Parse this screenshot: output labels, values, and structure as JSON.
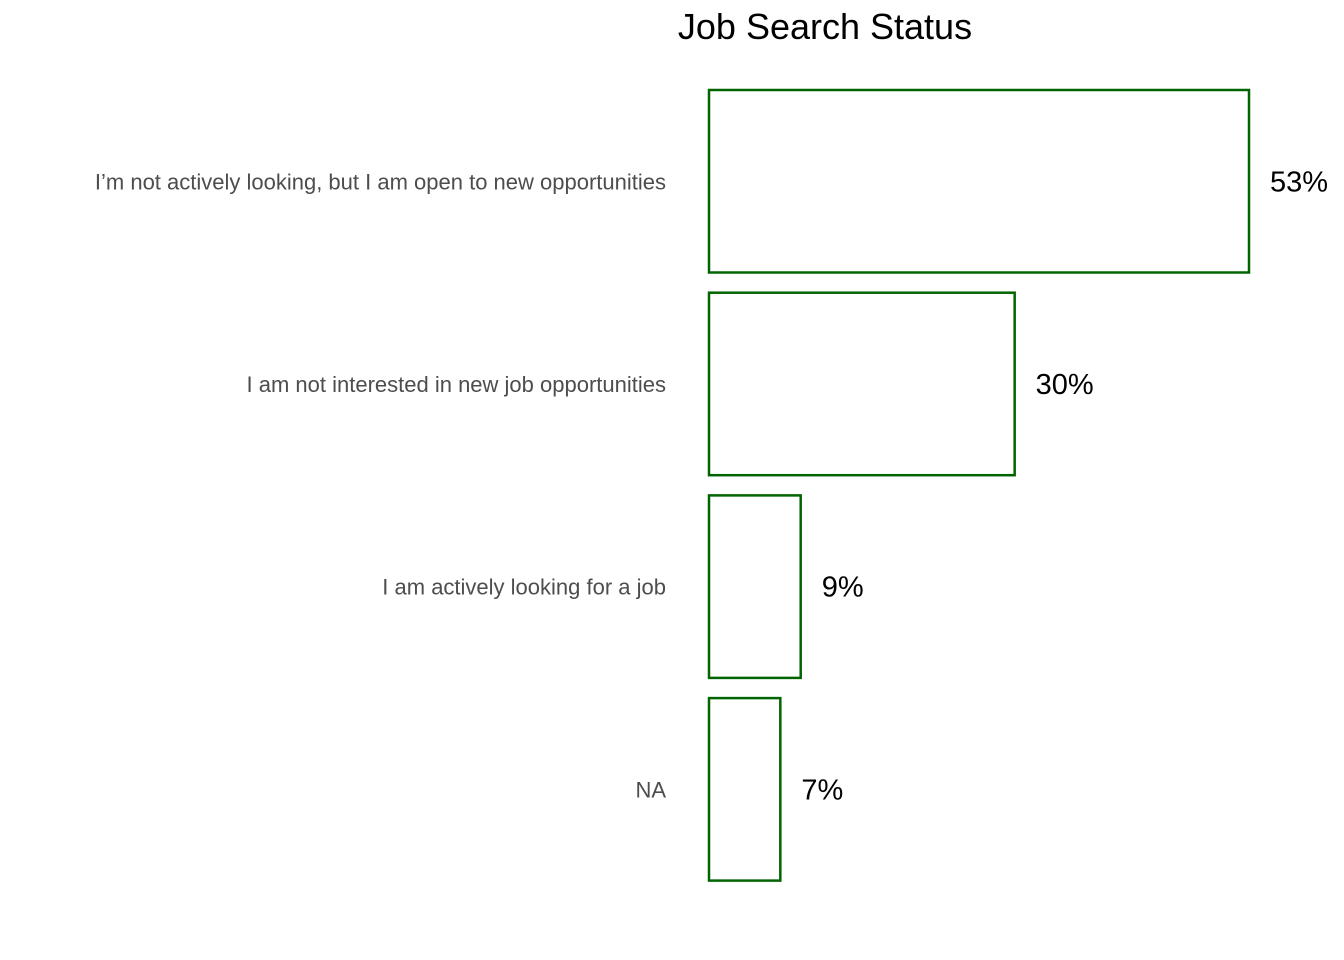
{
  "chart_data": {
    "type": "bar",
    "orientation": "horizontal",
    "title": "Job Search Status",
    "xlabel": "",
    "ylabel": "",
    "categories": [
      "I’m not actively looking, but I am open to new opportunities",
      "I am not interested in new job opportunities",
      "I am actively looking for a job",
      "NA"
    ],
    "values": [
      53,
      30,
      9,
      7
    ],
    "value_labels": [
      "53%",
      "30%",
      "9%",
      "7%"
    ],
    "unit": "%",
    "xlim": [
      0,
      53
    ],
    "grid": false,
    "legend": "none",
    "bar_fill": "#ffffff",
    "bar_outline": "#006400"
  }
}
